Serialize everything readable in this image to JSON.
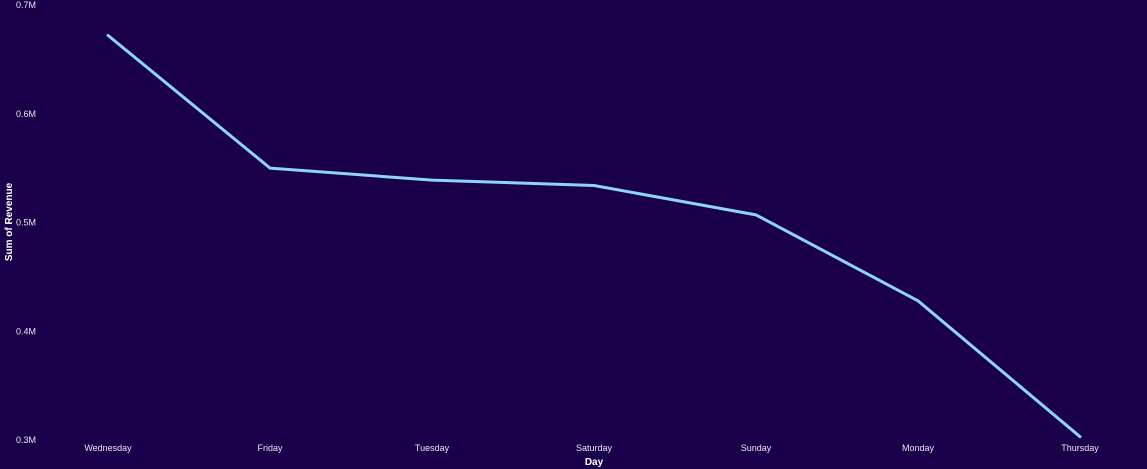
{
  "chart_data": {
    "type": "line",
    "categories": [
      "Wednesday",
      "Friday",
      "Tuesday",
      "Saturday",
      "Sunday",
      "Monday",
      "Thursday"
    ],
    "series": [
      {
        "values": [
          0.672,
          0.55,
          0.539,
          0.534,
          0.507,
          0.428,
          0.303
        ],
        "color": "#8ed4f5"
      }
    ],
    "ylim": [
      0.3,
      0.7
    ],
    "yticks": [
      0.3,
      0.4,
      0.5,
      0.6,
      0.7
    ],
    "ytick_labels": [
      "0.3M",
      "0.4M",
      "0.5M",
      "0.6M",
      "0.7M"
    ],
    "value_unit": "M",
    "xlabel": "Day",
    "ylabel": "Sum of Revenue",
    "grid": false,
    "legend": "none",
    "background": "#1a004a"
  }
}
